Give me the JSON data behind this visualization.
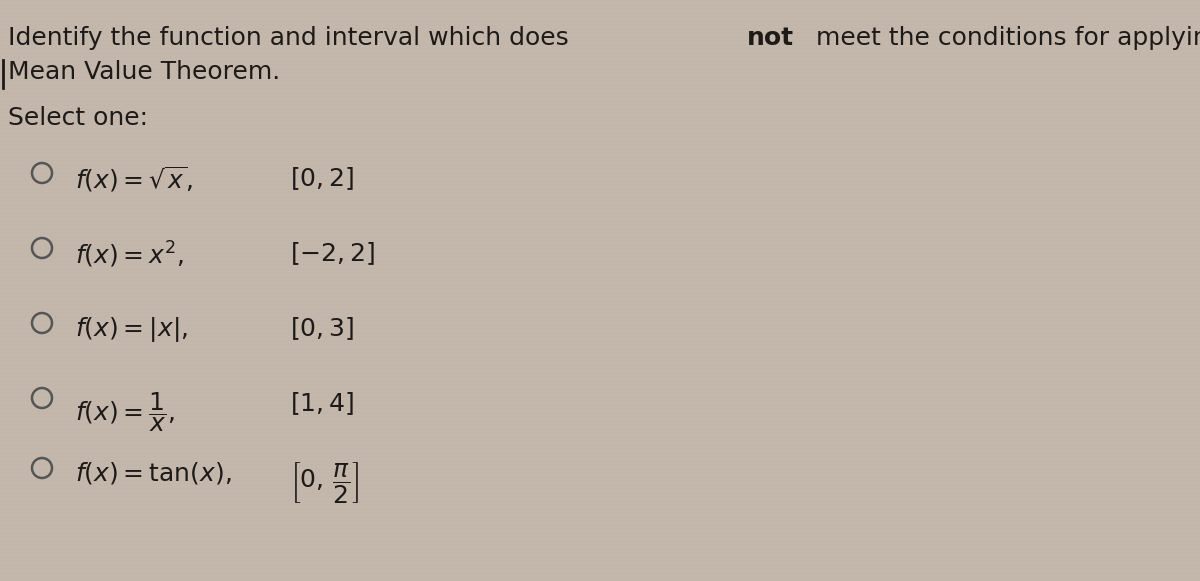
{
  "title_prefix": "Identify the function and interval which does ",
  "title_bold": "not",
  "title_suffix": " meet the conditions for applying the",
  "title_line2": "Mean Value Theorem.",
  "select_one": "Select one:",
  "options": [
    {
      "formula": "$f(x) = \\sqrt{x},$",
      "interval": "$[0, 2]$"
    },
    {
      "formula": "$f(x) = x^2,$",
      "interval": "$[-2, 2]$"
    },
    {
      "formula": "$f(x) = |x|,$",
      "interval": "$[0, 3]$"
    },
    {
      "formula": "$f(x) = \\dfrac{1}{x},$",
      "interval": "$[1, 4]$"
    },
    {
      "formula": "$f(x) = \\tan(x),$",
      "interval": "$\\left[0,\\, \\dfrac{\\pi}{2}\\right]$"
    }
  ],
  "bg_color": "#c4b8ad",
  "text_color": "#1e1a18",
  "title_fontsize": 18,
  "option_fontsize": 18,
  "select_fontsize": 18,
  "circle_color": "#555555"
}
